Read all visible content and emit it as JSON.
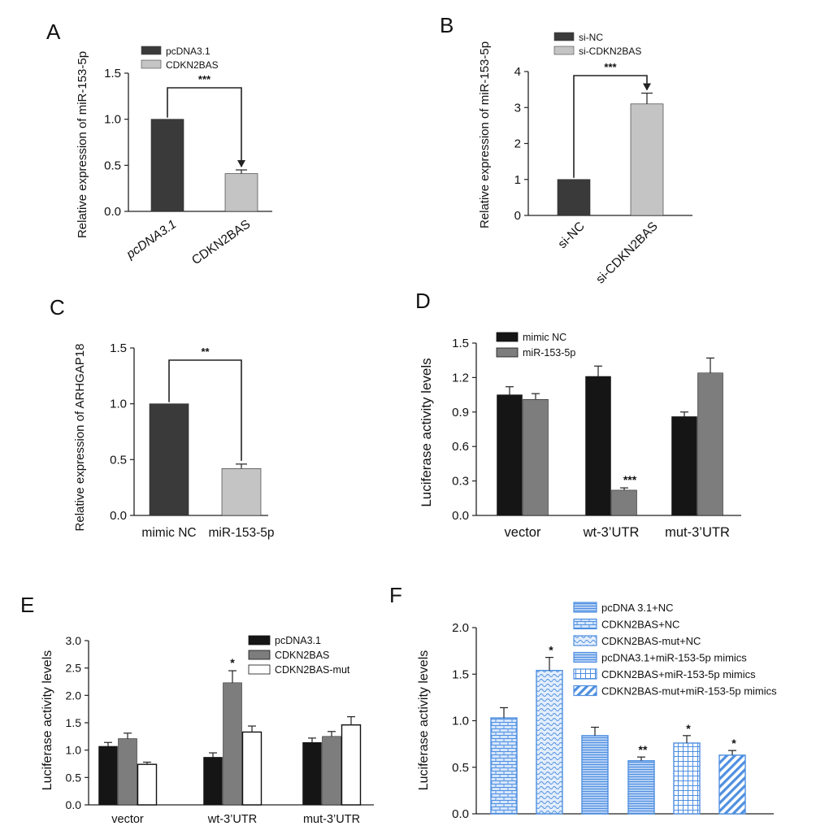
{
  "colors": {
    "axis": "#222222",
    "dark_gray": "#3a3a3a",
    "light_gray": "#c4c4c4",
    "black": "#151515",
    "mid_gray": "#7d7d7d",
    "white": "#ffffff",
    "blue": "#4f8fe0",
    "blue_fill": "#d5e6fb"
  },
  "chart_data": [
    {
      "panel": "A",
      "type": "bar",
      "ylabel": "Relative expression of miR-153-5p",
      "ylim": [
        0,
        1.5
      ],
      "yticks": [
        "0.0",
        "0.5",
        "1.0",
        "1.5"
      ],
      "categories": [
        "pcDNA3.1",
        "CDKN2BAS"
      ],
      "series": [
        {
          "name": "pcDNA3.1 / CDKN2BAS",
          "values": [
            1.0,
            0.41
          ],
          "errors": [
            0.0,
            0.04
          ]
        }
      ],
      "legend": [
        "pcDNA3.1",
        "CDKN2BAS"
      ],
      "significance": "***",
      "italic_first_category": true
    },
    {
      "panel": "B",
      "type": "bar",
      "ylabel": "Relative expression of miR-153-5p",
      "ylim": [
        0,
        4
      ],
      "yticks": [
        "0",
        "1",
        "2",
        "3",
        "4"
      ],
      "categories": [
        "si-NC",
        "si-CDKN2BAS"
      ],
      "series": [
        {
          "name": "si-NC / si-CDKN2BAS",
          "values": [
            1.0,
            3.1
          ],
          "errors": [
            0.0,
            0.3
          ]
        }
      ],
      "legend": [
        "si-NC",
        "si-CDKN2BAS"
      ],
      "significance": "***"
    },
    {
      "panel": "C",
      "type": "bar",
      "ylabel": "Relative expression of ARHGAP18",
      "ylim": [
        0,
        1.5
      ],
      "yticks": [
        "0.0",
        "0.5",
        "1.0",
        "1.5"
      ],
      "categories": [
        "mimic NC",
        "miR-153-5p"
      ],
      "series": [
        {
          "name": "mimic NC / miR-153-5p",
          "values": [
            1.0,
            0.42
          ],
          "errors": [
            0.0,
            0.04
          ]
        }
      ],
      "significance": "**"
    },
    {
      "panel": "D",
      "type": "bar",
      "ylabel": "Luciferase activity levels",
      "ylim": [
        0,
        1.5
      ],
      "yticks": [
        "0.0",
        "0.3",
        "0.6",
        "0.9",
        "1.2",
        "1.5"
      ],
      "categories": [
        "vector",
        "wt-3’UTR",
        "mut-3’UTR"
      ],
      "series": [
        {
          "name": "mimic NC",
          "values": [
            1.05,
            1.21,
            0.86
          ],
          "errors": [
            0.07,
            0.09,
            0.04
          ]
        },
        {
          "name": "miR-153-5p",
          "values": [
            1.01,
            0.22,
            1.24
          ],
          "errors": [
            0.05,
            0.02,
            0.13
          ]
        }
      ],
      "annotations": [
        {
          "category": 1,
          "series": 1,
          "text": "***"
        }
      ]
    },
    {
      "panel": "E",
      "type": "bar",
      "ylabel": "Luciferase activity levels",
      "ylim": [
        0,
        3.0
      ],
      "yticks": [
        "0.0",
        "0.5",
        "1.0",
        "1.5",
        "2.0",
        "2.5",
        "3.0"
      ],
      "categories": [
        "vector",
        "wt-3’UTR",
        "mut-3’UTR"
      ],
      "series": [
        {
          "name": "pcDNA3.1",
          "values": [
            1.07,
            0.87,
            1.14
          ],
          "errors": [
            0.07,
            0.08,
            0.08
          ]
        },
        {
          "name": "CDKN2BAS",
          "values": [
            1.21,
            2.23,
            1.25
          ],
          "errors": [
            0.1,
            0.22,
            0.09
          ]
        },
        {
          "name": "CDKN2BAS-mut",
          "values": [
            0.74,
            1.33,
            1.46
          ],
          "errors": [
            0.04,
            0.11,
            0.15
          ]
        }
      ],
      "annotations": [
        {
          "category": 1,
          "series": 1,
          "text": "*"
        }
      ]
    },
    {
      "panel": "F",
      "type": "bar",
      "ylabel": "Luciferase activity levels",
      "ylim": [
        0,
        2.0
      ],
      "yticks": [
        "0.0",
        "0.5",
        "1.0",
        "1.5",
        "2.0"
      ],
      "categories": [
        "pcDNA 3.1+NC",
        "CDKN2BAS+NC",
        "CDKN2BAS-mut+NC",
        "pcDNA3.1+miR-153-5p mimics",
        "CDKN2BAS+miR-153-5p mimics",
        "CDKN2BAS-mut+miR-153-5p mimics"
      ],
      "series": [
        {
          "name": "conditions",
          "values": [
            1.03,
            1.54,
            0.84,
            0.57,
            0.76,
            0.63
          ],
          "errors": [
            0.11,
            0.14,
            0.09,
            0.04,
            0.08,
            0.05
          ]
        }
      ],
      "annotations": [
        "",
        "*",
        "",
        "**",
        "*",
        "*"
      ]
    }
  ]
}
